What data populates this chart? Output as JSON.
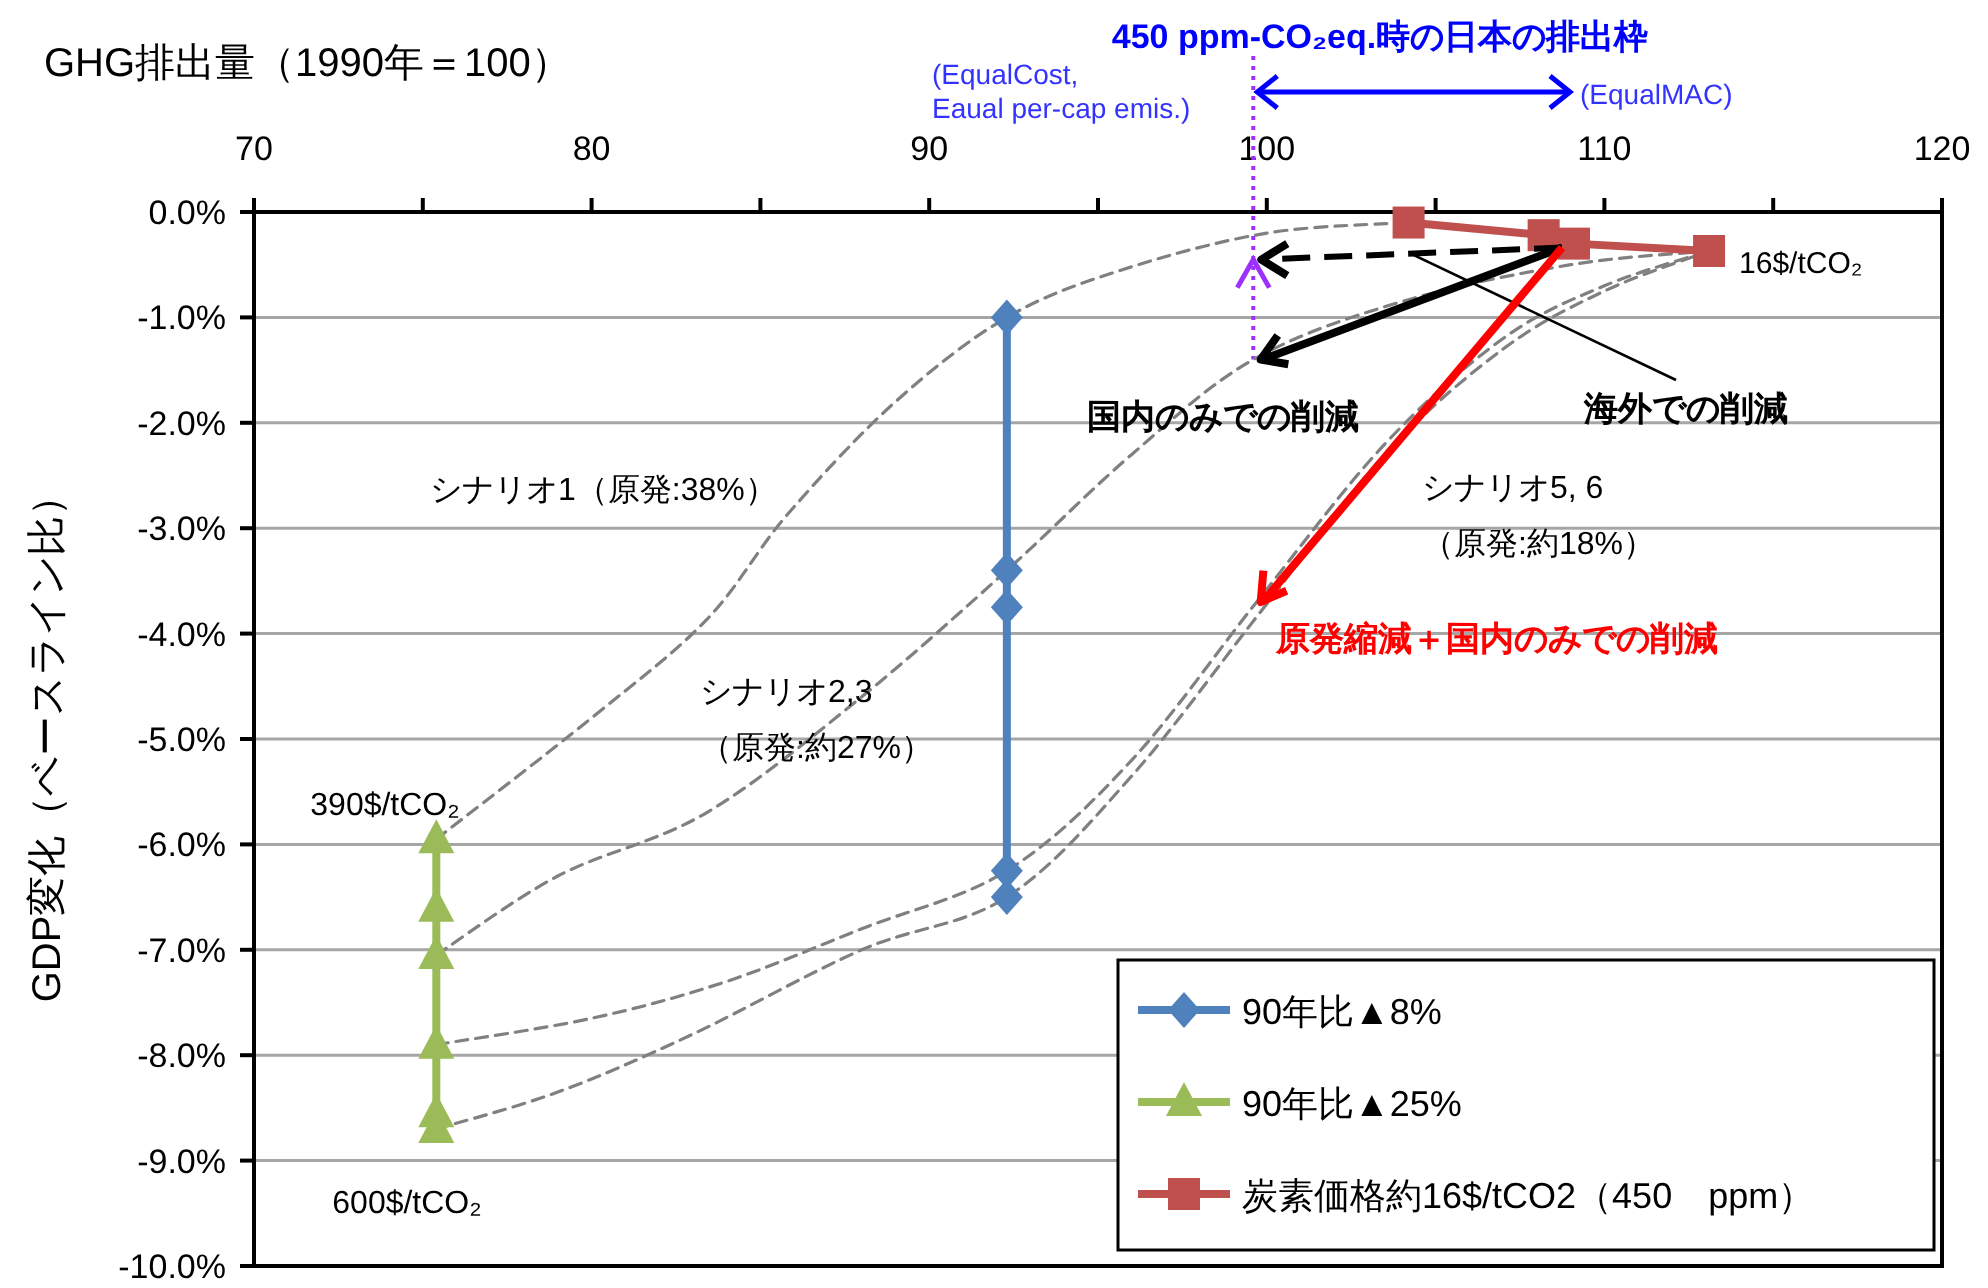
{
  "chart_data": {
    "type": "line",
    "xlabel": "GHG排出量（1990年＝100）",
    "ylabel": "GDP変化（ベースライン比）",
    "xlim": [
      70,
      120
    ],
    "xticks": [
      70,
      {
        "value": 75,
        "label": null
      },
      80,
      {
        "value": 85,
        "label": null
      },
      90,
      {
        "value": 95,
        "label": null
      },
      100,
      {
        "value": 105,
        "label": null
      },
      110,
      {
        "value": 115,
        "label": null
      },
      120
    ],
    "ylim": [
      -10,
      0
    ],
    "yticks": [
      {
        "value": 0,
        "label": "0.0%"
      },
      {
        "value": -1,
        "label": "-1.0%"
      },
      {
        "value": -2,
        "label": "-2.0%"
      },
      {
        "value": -3,
        "label": "-3.0%"
      },
      {
        "value": -4,
        "label": "-4.0%"
      },
      {
        "value": -5,
        "label": "-5.0%"
      },
      {
        "value": -6,
        "label": "-6.0%"
      },
      {
        "value": -7,
        "label": "-7.0%"
      },
      {
        "value": -8,
        "label": "-8.0%"
      },
      {
        "value": -9,
        "label": "-9.0%"
      },
      {
        "value": -10,
        "label": "-10.0%"
      }
    ],
    "grid": "y",
    "legend": "bottom right",
    "series": [
      {
        "name": "90年比▲8%",
        "color": "#4f81bd",
        "marker": "diamond",
        "x": [
          92.3,
          92.3,
          92.3,
          92.3,
          92.3
        ],
        "values": [
          -1.0,
          -3.4,
          -3.75,
          -6.25,
          -6.5
        ]
      },
      {
        "name": "90年比▲25%",
        "color": "#9bbb59",
        "marker": "triangle",
        "x": [
          75.4,
          75.4,
          75.4,
          75.4,
          75.4,
          75.4
        ],
        "values": [
          -5.95,
          -6.6,
          -7.05,
          -7.9,
          -8.55,
          -8.7
        ]
      },
      {
        "name": "炭素価格約16$/tCO2（450　ppm）",
        "color": "#c0504d",
        "marker": "square",
        "x": [
          104.2,
          108.2,
          109.1,
          113.1
        ],
        "values": [
          -0.1,
          -0.22,
          -0.3,
          -0.37
        ]
      },
      {
        "color": "#808080",
        "marker": "none",
        "line_style": "dashed",
        "x": [
          75.4,
          80,
          83.4,
          85.8,
          89,
          92.3,
          95.7,
          100,
          104.2
        ],
        "values": [
          -5.95,
          -4.8,
          -3.87,
          -2.87,
          -1.8,
          -1.0,
          -0.55,
          -0.2,
          -0.1
        ]
      },
      {
        "color": "#808080",
        "marker": "none",
        "line_style": "dashed",
        "x": [
          75.4,
          79,
          83.4,
          88,
          92.3,
          96,
          99.6,
          104,
          109,
          113.1
        ],
        "values": [
          -7.05,
          -6.3,
          -5.7,
          -4.6,
          -3.4,
          -2.3,
          -1.4,
          -0.85,
          -0.5,
          -0.37
        ]
      },
      {
        "color": "#808080",
        "marker": "none",
        "line_style": "dashed",
        "x": [
          75.4,
          80,
          84,
          88,
          92.3,
          96,
          99.7,
          103.5,
          107,
          110,
          113.1
        ],
        "values": [
          -7.9,
          -7.65,
          -7.3,
          -6.8,
          -6.25,
          -5.2,
          -3.7,
          -2.2,
          -1.2,
          -0.7,
          -0.37
        ]
      },
      {
        "color": "#808080",
        "marker": "none",
        "line_style": "dashed",
        "x": [
          75.4,
          79,
          83,
          88,
          92.3,
          96,
          99.8,
          103.5,
          107,
          110,
          113.1
        ],
        "values": [
          -8.7,
          -8.35,
          -7.8,
          -7.0,
          -6.5,
          -5.35,
          -3.8,
          -2.3,
          -1.3,
          -0.75,
          -0.37
        ]
      }
    ],
    "ref_lines": [
      {
        "axis": "x",
        "value": 99.6,
        "color": "#9b30ff",
        "line_style": "dotted"
      }
    ],
    "annotations": [
      "450 ppm-CO₂eq.時の日本の排出枠",
      "(EqualCost,\nEaual per-cap emis.)",
      "(EqualMAC)",
      {
        "text": "16$/tCO₂",
        "x": 113.1,
        "y": -0.37
      },
      {
        "text": "390$/tCO₂",
        "x": 75.4,
        "y": -5.95
      },
      {
        "text": "600$/tCO₂",
        "x": 75.4,
        "y": -8.7
      },
      "シナリオ1（原発:38%）",
      "シナリオ2,3\n（原発:約27%）",
      "シナリオ5, 6\n（原発:約18%）",
      "海外での削減",
      {
        "text": "国内のみでの削減",
        "x": 99.7,
        "y": -1.4
      },
      {
        "text": "原発縮減＋国内のみでの削減",
        "x": 99.7,
        "y": -3.7
      }
    ]
  }
}
